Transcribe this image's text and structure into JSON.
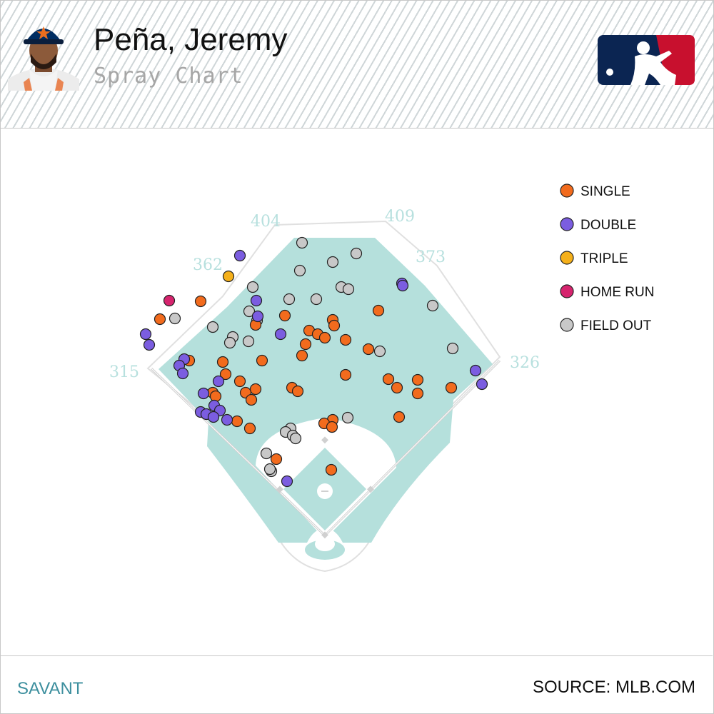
{
  "header": {
    "player_name": "Peña, Jeremy",
    "subtitle": "Spray Chart",
    "avatar_icon": "player-headshot-icon",
    "logo_icon": "mlb-logo-icon"
  },
  "footer": {
    "left_text": "SAVANT",
    "right_text": "SOURCE: MLB.COM"
  },
  "colors": {
    "field": "#b5e0dc",
    "single": "#f26b1d",
    "double": "#7b5de0",
    "triple": "#f5b01a",
    "home_run": "#d6246e",
    "field_out": "#c8c8c8"
  },
  "chart_data": {
    "type": "scatter",
    "title": "Spray Chart",
    "fence_distances": [
      "315",
      "362",
      "404",
      "409",
      "373",
      "326"
    ],
    "legend": [
      {
        "label": "SINGLE",
        "key": "single"
      },
      {
        "label": "DOUBLE",
        "key": "double"
      },
      {
        "label": "TRIPLE",
        "key": "triple"
      },
      {
        "label": "HOME RUN",
        "key": "home_run"
      },
      {
        "label": "FIELD OUT",
        "key": "field_out"
      }
    ],
    "legend_position": "right",
    "series": [
      {
        "name": "SINGLE",
        "key": "single",
        "points": [
          [
            224,
            447
          ],
          [
            281,
            422
          ],
          [
            399,
            442
          ],
          [
            466,
            448
          ],
          [
            468,
            456
          ],
          [
            530,
            435
          ],
          [
            358,
            455
          ],
          [
            433,
            463
          ],
          [
            445,
            468
          ],
          [
            455,
            473
          ],
          [
            484,
            476
          ],
          [
            428,
            482
          ],
          [
            516,
            489
          ],
          [
            423,
            498
          ],
          [
            367,
            505
          ],
          [
            312,
            507
          ],
          [
            265,
            505
          ],
          [
            316,
            524
          ],
          [
            484,
            525
          ],
          [
            336,
            534
          ],
          [
            544,
            531
          ],
          [
            585,
            532
          ],
          [
            556,
            543
          ],
          [
            632,
            543
          ],
          [
            358,
            545
          ],
          [
            409,
            543
          ],
          [
            417,
            548
          ],
          [
            344,
            550
          ],
          [
            352,
            560
          ],
          [
            298,
            550
          ],
          [
            302,
            555
          ],
          [
            585,
            551
          ],
          [
            559,
            584
          ],
          [
            466,
            588
          ],
          [
            454,
            593
          ],
          [
            465,
            598
          ],
          [
            332,
            590
          ],
          [
            350,
            600
          ],
          [
            387,
            643
          ],
          [
            464,
            658
          ]
        ]
      },
      {
        "name": "DOUBLE",
        "key": "double",
        "points": [
          [
            336,
            358
          ],
          [
            359,
            421
          ],
          [
            361,
            443
          ],
          [
            393,
            468
          ],
          [
            204,
            468
          ],
          [
            209,
            483
          ],
          [
            258,
            503
          ],
          [
            251,
            512
          ],
          [
            256,
            523
          ],
          [
            306,
            534
          ],
          [
            285,
            551
          ],
          [
            300,
            568
          ],
          [
            308,
            575
          ],
          [
            281,
            577
          ],
          [
            289,
            580
          ],
          [
            299,
            584
          ],
          [
            318,
            588
          ],
          [
            563,
            397
          ],
          [
            564,
            400
          ],
          [
            666,
            519
          ],
          [
            675,
            538
          ],
          [
            402,
            674
          ]
        ]
      },
      {
        "name": "TRIPLE",
        "key": "triple",
        "points": [
          [
            320,
            387
          ]
        ]
      },
      {
        "name": "HOME RUN",
        "key": "home_run",
        "points": [
          [
            237,
            421
          ]
        ]
      },
      {
        "name": "FIELD OUT",
        "key": "field_out",
        "points": [
          [
            423,
            340
          ],
          [
            499,
            355
          ],
          [
            466,
            367
          ],
          [
            420,
            379
          ],
          [
            354,
            402
          ],
          [
            405,
            419
          ],
          [
            443,
            419
          ],
          [
            478,
            402
          ],
          [
            488,
            405
          ],
          [
            349,
            436
          ],
          [
            360,
            449
          ],
          [
            245,
            446
          ],
          [
            298,
            458
          ],
          [
            326,
            472
          ],
          [
            322,
            480
          ],
          [
            348,
            478
          ],
          [
            606,
            428
          ],
          [
            532,
            492
          ],
          [
            634,
            488
          ],
          [
            487,
            585
          ],
          [
            407,
            600
          ],
          [
            400,
            605
          ],
          [
            410,
            610
          ],
          [
            414,
            614
          ],
          [
            373,
            635
          ],
          [
            380,
            660
          ],
          [
            378,
            657
          ]
        ]
      }
    ]
  }
}
